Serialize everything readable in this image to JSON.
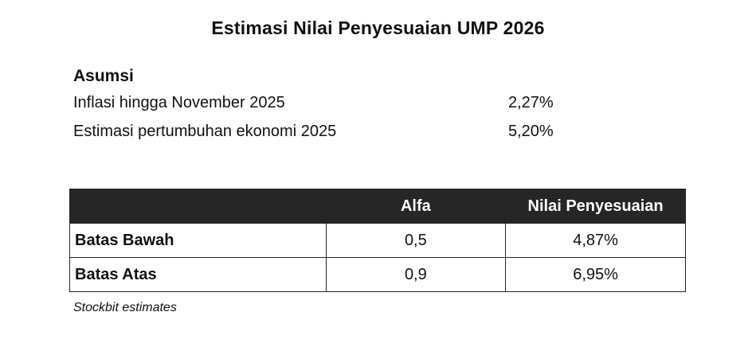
{
  "title": "Estimasi Nilai Penyesuaian UMP 2026",
  "assumptions": {
    "heading": "Asumsi",
    "items": [
      {
        "label": "Inflasi hingga November 2025",
        "value": "2,27%"
      },
      {
        "label": "Estimasi pertumbuhan ekonomi 2025",
        "value": "5,20%"
      }
    ]
  },
  "table": {
    "headers": [
      "",
      "Alfa",
      "Nilai Penyesuaian"
    ],
    "rows": [
      {
        "label": "Batas Bawah",
        "alfa": "0,5",
        "nilai": "4,87%"
      },
      {
        "label": "Batas Atas",
        "alfa": "0,9",
        "nilai": "6,95%"
      }
    ],
    "header_bg": "#262626",
    "header_text_color": "#ffffff"
  },
  "source": "Stockbit estimates"
}
